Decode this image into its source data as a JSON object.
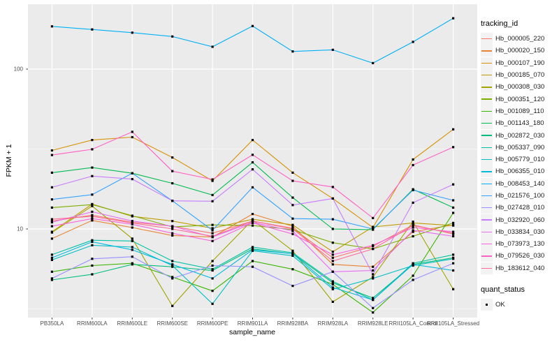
{
  "colors": {
    "panel_bg": "#EBEBEB",
    "gridline": "#FFFFFF",
    "axis_text": "#4D4D4D",
    "tick_mark": "#333333",
    "point": "#000000",
    "legend_key_bg": "#F2F2F2"
  },
  "legend": {
    "title": "tracking_id"
  },
  "legend2": {
    "title": "quant_status",
    "items": [
      {
        "label": "OK"
      }
    ]
  },
  "chart_data": {
    "type": "line",
    "title": "",
    "xlabel": "sample_name",
    "ylabel": "FPKM + 1",
    "y_scale": "log10",
    "grid": "on",
    "legend_position": "right",
    "point_shape": "square",
    "ylim_approx": [
      2.8,
      255
    ],
    "categories": [
      "PB350LA",
      "RRIM600LA",
      "RRIM600LE",
      "RRIM600SE",
      "RRIM600PE",
      "RRIM901LA",
      "RRIM928BA",
      "RRIM928LA",
      "RRIM928LE",
      "RRII105LA_Control",
      "RRII105LA_Stressed"
    ],
    "y_ticks": [
      {
        "label": "100",
        "value": 100
      },
      {
        "label": "10",
        "value": 10
      }
    ],
    "y_minor": [
      31.62,
      3.162
    ],
    "series": [
      {
        "name": "Hb_000005_220",
        "color": "#F8766D",
        "quant_status": "OK",
        "values": [
          11.2,
          12.2,
          11.0,
          10.4,
          9.4,
          11.2,
          10.1,
          6.6,
          7.8,
          10.6,
          9.3
        ]
      },
      {
        "name": "Hb_000020_150",
        "color": "#EA8331",
        "quant_status": "OK",
        "values": [
          8.7,
          11.3,
          10.2,
          9.1,
          8.9,
          12.4,
          10.4,
          6.0,
          5.8,
          9.6,
          10.6
        ]
      },
      {
        "name": "Hb_000107_190",
        "color": "#D89000",
        "quant_status": "OK",
        "values": [
          31,
          36,
          37.5,
          28,
          20,
          36,
          22.5,
          15.5,
          10.2,
          27.2,
          42
        ]
      },
      {
        "name": "Hb_000185_070",
        "color": "#C09B00",
        "quant_status": "OK",
        "values": [
          9.6,
          14.3,
          12.0,
          11.2,
          10.1,
          11.5,
          10.6,
          7.2,
          10.3,
          10.9,
          10.5
        ]
      },
      {
        "name": "Hb_000308_030",
        "color": "#A3A500",
        "quant_status": "OK",
        "values": [
          9.5,
          13.9,
          8.7,
          3.3,
          6.3,
          11.4,
          7.3,
          3.5,
          5.0,
          11.1,
          4.2
        ]
      },
      {
        "name": "Hb_000351_120",
        "color": "#7CAE00",
        "quant_status": "OK",
        "values": [
          13.6,
          14.2,
          12.1,
          10.3,
          10.6,
          10.5,
          9.9,
          8.2,
          7.5,
          9.0,
          10.9
        ]
      },
      {
        "name": "Hb_001089_110",
        "color": "#39B600",
        "quant_status": "OK",
        "values": [
          5.4,
          5.9,
          6.1,
          5.0,
          4.1,
          6.3,
          5.6,
          4.5,
          3.0,
          5.1,
          12.6
        ]
      },
      {
        "name": "Hb_001143_180",
        "color": "#00BB4E",
        "quant_status": "OK",
        "values": [
          22.5,
          24.2,
          22.3,
          19.3,
          16.3,
          26.1,
          15.7,
          10.0,
          9.9,
          17.7,
          13.6
        ]
      },
      {
        "name": "Hb_002872_030",
        "color": "#00BF7D",
        "quant_status": "OK",
        "values": [
          4.8,
          5.2,
          6.0,
          5.8,
          5.5,
          7.5,
          7.0,
          4.6,
          3.7,
          6.0,
          6.6
        ]
      },
      {
        "name": "Hb_005337_090",
        "color": "#00C1A3",
        "quant_status": "OK",
        "values": [
          6.9,
          8.5,
          8.4,
          6.3,
          5.6,
          7.7,
          7.1,
          4.7,
          3.6,
          6.1,
          6.9
        ]
      },
      {
        "name": "Hb_005779_010",
        "color": "#00BFC4",
        "quant_status": "OK",
        "values": [
          6.4,
          7.9,
          7.7,
          5.9,
          3.4,
          7.3,
          6.8,
          4.2,
          4.9,
          5.9,
          6.5
        ]
      },
      {
        "name": "Hb_006355_010",
        "color": "#00BAE0",
        "quant_status": "OK",
        "values": [
          6.6,
          8.3,
          7.4,
          6.0,
          4.9,
          7.4,
          7.0,
          4.3,
          3.6,
          6.0,
          5.5
        ]
      },
      {
        "name": "Hb_008453_140",
        "color": "#00B0F6",
        "quant_status": "OK",
        "values": [
          185,
          177,
          169,
          160,
          138,
          186,
          129,
          132,
          109,
          148,
          208
        ]
      },
      {
        "name": "Hb_021576_100",
        "color": "#35A2FF",
        "quant_status": "OK",
        "values": [
          15.3,
          16.4,
          22.3,
          15.0,
          9.8,
          18.2,
          11.6,
          11.5,
          10.0,
          17.5,
          15.1
        ]
      },
      {
        "name": "Hb_027428_010",
        "color": "#9590FF",
        "quant_status": "OK",
        "values": [
          4.9,
          6.5,
          6.7,
          4.9,
          5.9,
          5.8,
          4.4,
          5.4,
          3.2,
          4.8,
          6.1
        ]
      },
      {
        "name": "Hb_032920_060",
        "color": "#C77CFF",
        "quant_status": "OK",
        "values": [
          18.2,
          21.4,
          20.5,
          15.0,
          14.9,
          23.6,
          14.1,
          15.5,
          5.2,
          14.6,
          19.0
        ]
      },
      {
        "name": "Hb_033834_030",
        "color": "#E76BF3",
        "quant_status": "OK",
        "values": [
          11.0,
          12.8,
          11.2,
          10.4,
          8.9,
          11.0,
          9.7,
          5.4,
          5.5,
          9.8,
          9.0
        ]
      },
      {
        "name": "Hb_073973_130",
        "color": "#FA62DB",
        "quant_status": "OK",
        "values": [
          10.4,
          11.6,
          10.7,
          9.4,
          8.4,
          10.9,
          9.3,
          6.9,
          7.9,
          10.2,
          9.6
        ]
      },
      {
        "name": "Hb_079526_030",
        "color": "#FF61C3",
        "quant_status": "OK",
        "values": [
          29,
          31.5,
          40.5,
          23,
          20.4,
          29.1,
          20.0,
          18.3,
          11.7,
          25.1,
          32.5
        ]
      },
      {
        "name": "Hb_183612_040",
        "color": "#FF6A98",
        "quant_status": "OK",
        "values": [
          11.5,
          12.0,
          10.9,
          10.0,
          9.0,
          11.2,
          10.0,
          6.3,
          7.5,
          10.5,
          9.4
        ]
      }
    ]
  }
}
